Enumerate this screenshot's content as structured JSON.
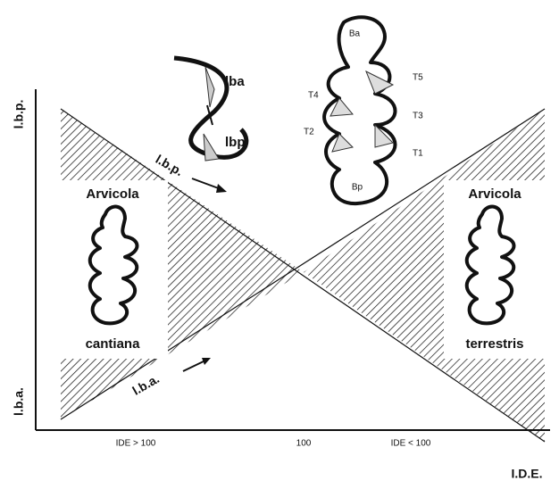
{
  "axes": {
    "y_top_label": "l.b.p.",
    "y_bottom_label": "l.b.a.",
    "x_label": "I.D.E.",
    "x_ticks": [
      "IDE > 100",
      "100",
      "IDE < 100"
    ]
  },
  "annotations": {
    "lbp_arrow": "l.b.p.",
    "lba_arrow": "l.b.a."
  },
  "specimens": [
    {
      "genus": "Arvicola",
      "species": "cantiana"
    },
    {
      "genus": "Arvicola",
      "species": "terrestris"
    }
  ],
  "detail": {
    "upper": "lba",
    "lower": "lbp"
  },
  "tooth_labels": [
    "Ba",
    "T5",
    "T4",
    "T3",
    "T2",
    "T1",
    "Bp"
  ]
}
